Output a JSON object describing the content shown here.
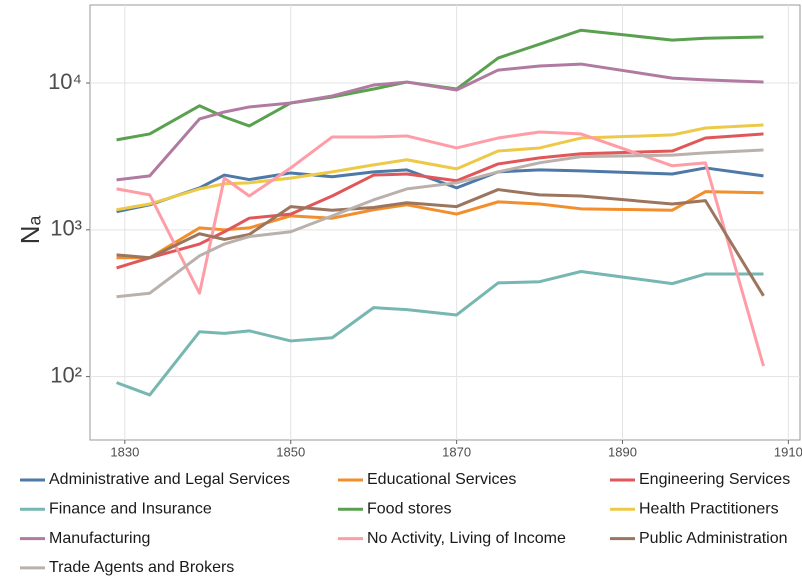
{
  "chart_data": {
    "type": "line",
    "ylabel": "Nₐ",
    "log_y": true,
    "grid": true,
    "x": [
      1829,
      1833,
      1839,
      1842,
      1845,
      1850,
      1855,
      1860,
      1864,
      1870,
      1875,
      1880,
      1885,
      1896,
      1900,
      1907
    ],
    "xlim": [
      1825.8,
      1911.4
    ],
    "xticks": [
      1830,
      1850,
      1870,
      1890,
      1910
    ],
    "ylim": [
      37,
      34000
    ],
    "yticks": [
      {
        "value": 100,
        "label": "10²"
      },
      {
        "value": 1000,
        "label": "10³"
      },
      {
        "value": 10000,
        "label": "10⁴"
      }
    ],
    "legend_position": "bottom",
    "series": [
      {
        "name": "Administrative and Legal Services",
        "color": "#4e79a7",
        "values": [
          1330,
          1480,
          1930,
          2360,
          2200,
          2440,
          2300,
          2480,
          2560,
          1930,
          2480,
          2560,
          2520,
          2400,
          2640,
          2330
        ]
      },
      {
        "name": "Educational Services",
        "color": "#f28e2b",
        "values": [
          645,
          645,
          1030,
          1000,
          1030,
          1245,
          1200,
          1370,
          1480,
          1280,
          1550,
          1500,
          1390,
          1360,
          1820,
          1790
        ]
      },
      {
        "name": "Engineering Services",
        "color": "#e15759",
        "values": [
          550,
          645,
          800,
          970,
          1200,
          1280,
          1700,
          2360,
          2400,
          2160,
          2810,
          3090,
          3300,
          3440,
          4220,
          4500
        ]
      },
      {
        "name": "Finance and Insurance",
        "color": "#76b7b2",
        "values": [
          91,
          75,
          202,
          197,
          205,
          175,
          184,
          295,
          286,
          263,
          435,
          443,
          520,
          430,
          500,
          500
        ]
      },
      {
        "name": "Food stores",
        "color": "#59a14f",
        "values": [
          4100,
          4500,
          7000,
          5870,
          5100,
          7310,
          8030,
          9100,
          10150,
          9100,
          14800,
          18400,
          22900,
          19600,
          20200,
          20600
        ]
      },
      {
        "name": "Health Practitioners",
        "color": "#edc948",
        "values": [
          1370,
          1500,
          1900,
          2060,
          2090,
          2250,
          2480,
          2770,
          3000,
          2600,
          3440,
          3610,
          4220,
          4430,
          4940,
          5180
        ]
      },
      {
        "name": "Manufacturing",
        "color": "#b07aa1",
        "values": [
          2190,
          2330,
          5690,
          6350,
          6870,
          7310,
          8160,
          9690,
          10150,
          8960,
          12250,
          13050,
          13460,
          10800,
          10500,
          10150
        ]
      },
      {
        "name": "No Activity, Living of Income",
        "color": "#ff9da7",
        "values": [
          1900,
          1730,
          370,
          2250,
          1700,
          2640,
          4290,
          4290,
          4360,
          3610,
          4220,
          4640,
          4500,
          2730,
          2860,
          118
        ]
      },
      {
        "name": "Public Administration",
        "color": "#9c755f",
        "values": [
          675,
          645,
          940,
          860,
          930,
          1440,
          1360,
          1420,
          1530,
          1440,
          1880,
          1730,
          1700,
          1500,
          1580,
          355
        ]
      },
      {
        "name": "Trade Agents and Brokers",
        "color": "#bab0ac",
        "values": [
          350,
          370,
          665,
          800,
          900,
          970,
          1245,
          1600,
          1900,
          2090,
          2480,
          2860,
          3150,
          3230,
          3340,
          3500
        ]
      }
    ]
  }
}
